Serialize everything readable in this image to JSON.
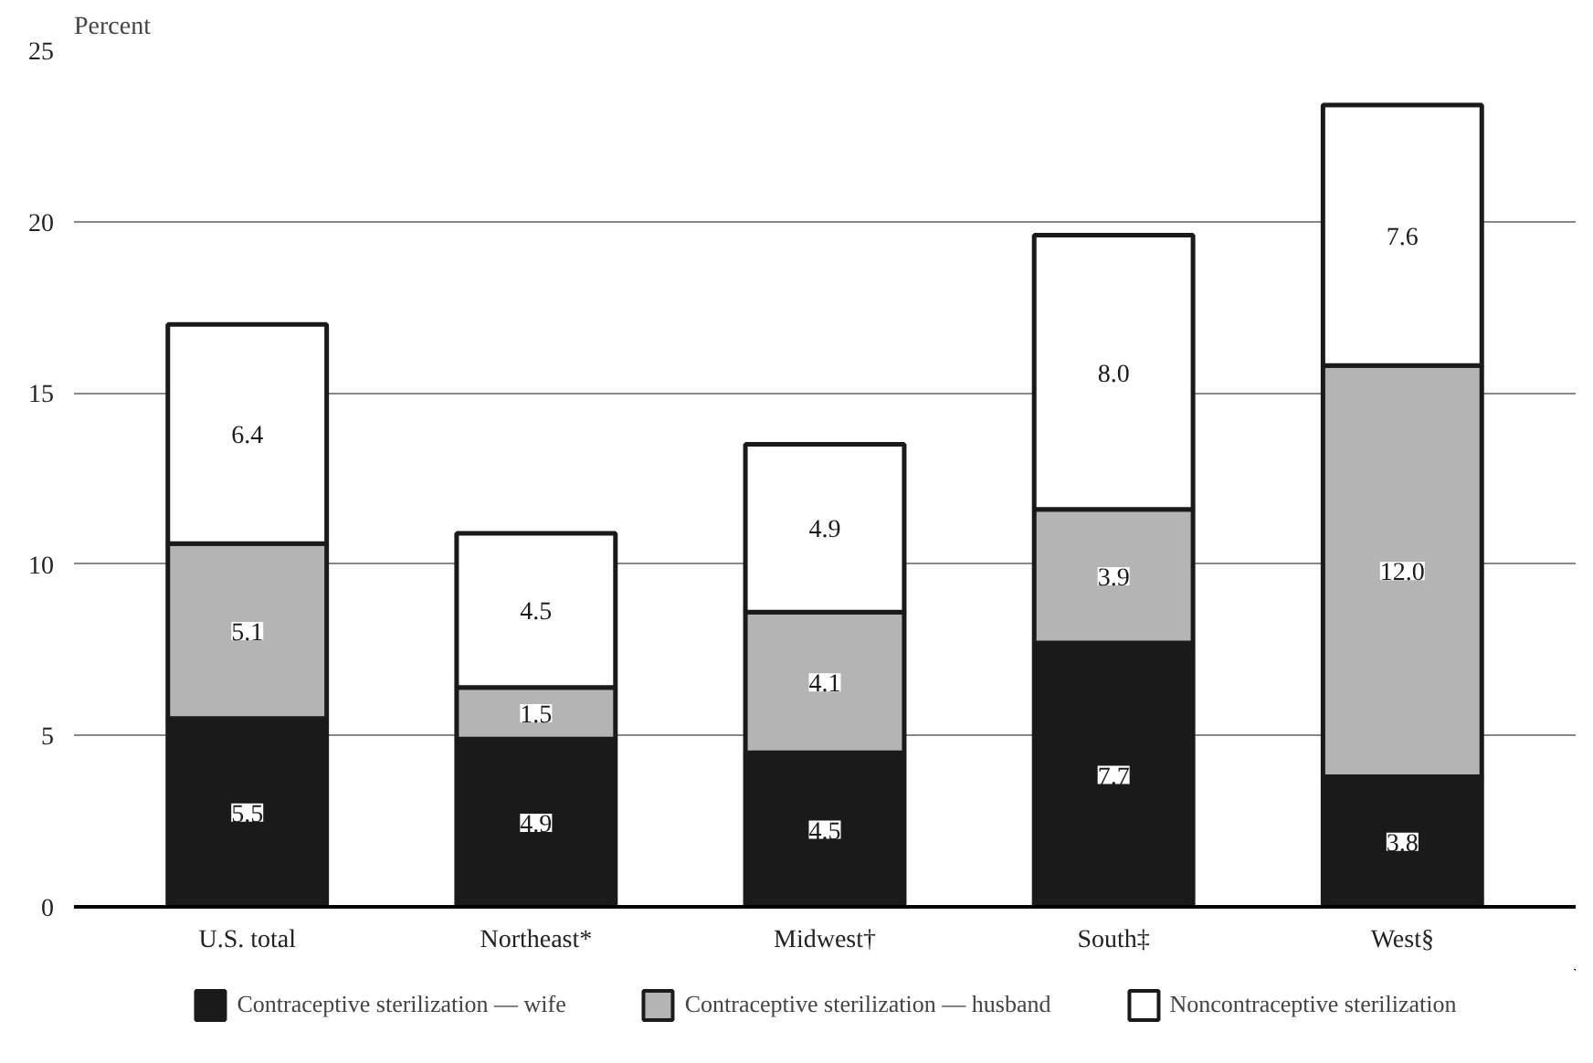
{
  "chart_data": {
    "type": "bar",
    "stacked": true,
    "ylabel": "Percent",
    "categories": [
      "U.S. total",
      "Northeast*",
      "Midwest†",
      "South‡",
      "West§"
    ],
    "series": [
      {
        "name": "Contraceptive sterilization — wife",
        "color": "#1a1a1a",
        "values": [
          5.5,
          4.9,
          4.5,
          7.7,
          3.8
        ],
        "value_labels": [
          "5.5",
          "4.9",
          "4.5",
          "7.7",
          "3.8"
        ]
      },
      {
        "name": "Contraceptive sterilization — husband",
        "color": "#b4b4b4",
        "values": [
          5.1,
          1.5,
          4.1,
          3.9,
          12.0
        ],
        "value_labels": [
          "5.1",
          "1.5",
          "4.1",
          "3.9",
          "12.0"
        ]
      },
      {
        "name": "Noncontraceptive sterilization",
        "color": "#ffffff",
        "values": [
          6.4,
          4.5,
          4.9,
          8.0,
          7.6
        ],
        "value_labels": [
          "6.4",
          "4.5",
          "4.9",
          "8.0",
          "7.6"
        ]
      }
    ],
    "ylim": [
      0,
      25
    ],
    "yticks": [
      0,
      5,
      10,
      15,
      20,
      25
    ],
    "grid": "y",
    "legend": "bottom"
  }
}
